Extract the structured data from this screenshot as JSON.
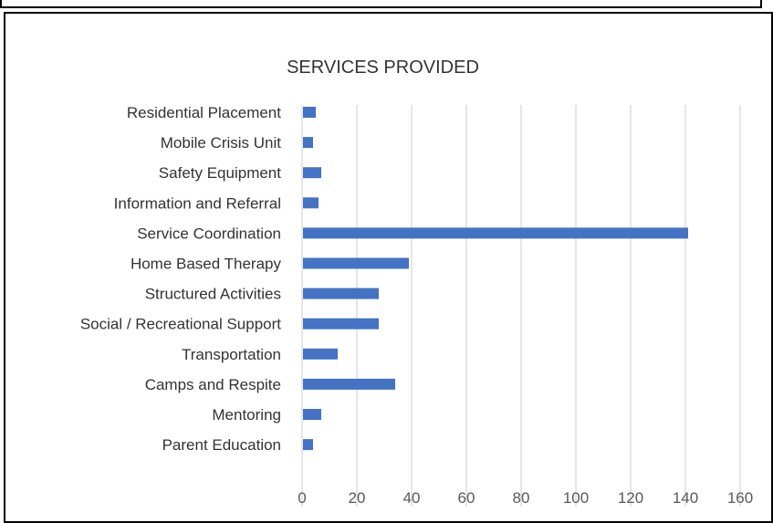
{
  "chart_data": {
    "type": "bar",
    "orientation": "horizontal",
    "title": "SERVICES PROVIDED",
    "categories": [
      "Residential Placement",
      "Mobile Crisis Unit",
      "Safety Equipment",
      "Information and Referral",
      "Service Coordination",
      "Home Based Therapy",
      "Structured Activities",
      "Social / Recreational Support",
      "Transportation",
      "Camps and Respite",
      "Mentoring",
      "Parent Education"
    ],
    "values": [
      5,
      4,
      7,
      6,
      141,
      39,
      28,
      28,
      13,
      34,
      7,
      4
    ],
    "xlim": [
      0,
      160
    ],
    "xticks": [
      0,
      20,
      40,
      60,
      80,
      100,
      120,
      140,
      160
    ],
    "grid": true,
    "bar_color": "#4472C4",
    "grid_color": "#d9d9d9",
    "text_color": "#333333"
  }
}
